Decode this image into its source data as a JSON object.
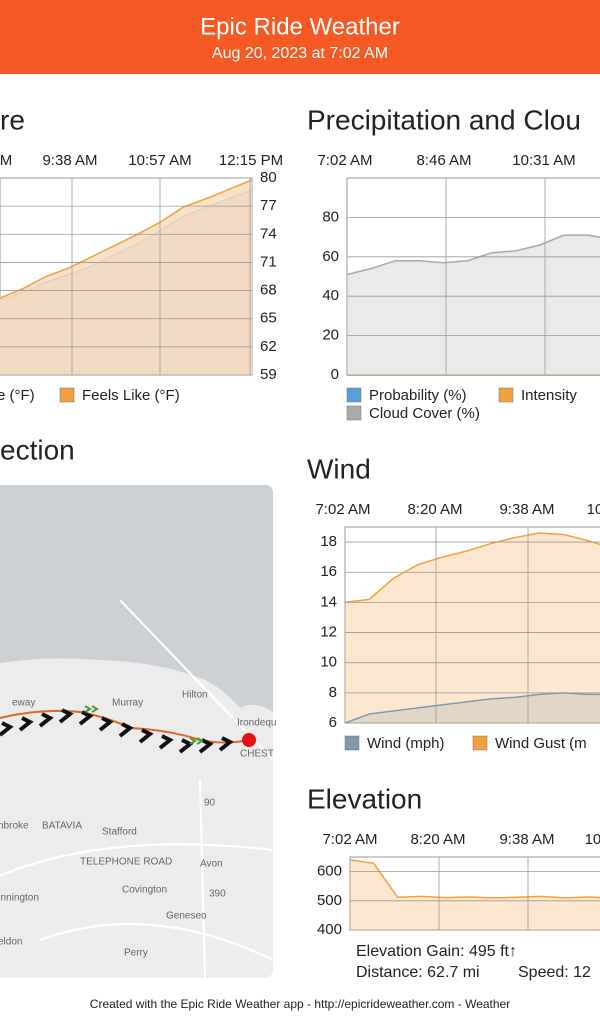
{
  "header": {
    "title": "Epic Ride Weather",
    "subtitle": "Aug 20, 2023 at 7:02 AM"
  },
  "charts": [
    {
      "type": "area",
      "title": "re",
      "x_labels": [
        "M",
        "9:38 AM",
        "10:57 AM",
        "12:15 PM"
      ],
      "ylim": [
        59,
        80
      ],
      "yticks": [
        59,
        62,
        65,
        68,
        71,
        74,
        77,
        80
      ],
      "y_axis_side": "right",
      "series": [
        {
          "name": "re (°F)",
          "color": "#8b9aa4",
          "fill": "#d9d0c3",
          "values": [
            67.0,
            67.8,
            68.9,
            69.7,
            70.6,
            71.8,
            73.0,
            74.4,
            75.9,
            76.9,
            77.8,
            78.7
          ]
        },
        {
          "name": "Feels Like (°F)",
          "color": "#f2a040",
          "fill": "#f6dcc0",
          "values": [
            67.2,
            68.2,
            69.5,
            70.4,
            71.6,
            72.8,
            74.0,
            75.3,
            76.9,
            77.8,
            78.8,
            79.8
          ]
        }
      ]
    },
    {
      "type": "area",
      "title": "Precipitation and Clou",
      "x_labels": [
        "7:02 AM",
        "8:46 AM",
        "10:31 AM"
      ],
      "ylim": [
        0,
        100
      ],
      "yticks": [
        0,
        20,
        40,
        60,
        80
      ],
      "y_axis_side": "left",
      "series": [
        {
          "name": "Probability (%)",
          "color": "#5a9fd4",
          "fill": "#cfe3f3",
          "values": [
            0,
            0,
            0,
            0,
            0,
            0,
            0,
            0,
            0,
            0,
            0,
            0
          ]
        },
        {
          "name": "Intensity",
          "color": "#f2a040",
          "fill": "#fde3c6",
          "values": [
            0,
            0,
            0,
            0,
            0,
            0,
            0,
            0,
            0,
            0,
            0,
            0
          ]
        },
        {
          "name": "Cloud Cover (%)",
          "color": "#aaaaaa",
          "fill": "#e6e6e6",
          "values": [
            51,
            54,
            58,
            58,
            57,
            58,
            62,
            63,
            66,
            71,
            71,
            69
          ]
        }
      ]
    },
    {
      "type": "area",
      "title": "Wind",
      "x_labels": [
        "7:02 AM",
        "8:20 AM",
        "9:38 AM",
        "10"
      ],
      "ylim": [
        6,
        19
      ],
      "yticks": [
        6,
        8,
        10,
        12,
        14,
        16,
        18
      ],
      "y_axis_side": "left",
      "series": [
        {
          "name": "Wind Gust (m",
          "color": "#f2a040",
          "fill": "#fde3c6",
          "values": [
            14.0,
            14.2,
            15.6,
            16.5,
            17.0,
            17.4,
            17.9,
            18.3,
            18.6,
            18.5,
            18.1,
            17.6
          ]
        },
        {
          "name": "Wind (mph)",
          "color": "#7f99ad",
          "fill": "#ddd3c5",
          "values": [
            6.0,
            6.6,
            6.8,
            7.0,
            7.2,
            7.4,
            7.6,
            7.7,
            7.9,
            8.0,
            7.9,
            7.9
          ]
        }
      ]
    },
    {
      "type": "area",
      "title": "Elevation",
      "x_labels": [
        "7:02 AM",
        "8:20 AM",
        "9:38 AM",
        "10:"
      ],
      "ylim": [
        400,
        650
      ],
      "yticks": [
        400,
        500,
        600
      ],
      "y_axis_side": "left",
      "color": "#f2a040",
      "fill": "#fde3c6",
      "values": [
        640,
        628,
        512,
        515,
        511,
        513,
        510,
        512,
        515,
        510,
        513,
        510
      ]
    }
  ],
  "map": {
    "title": "ection",
    "labels": [
      "eway",
      "Murray",
      "Hilton",
      "Irondequ",
      "CHEST",
      "90",
      "nbroke",
      "BATAVIA",
      "Stafford",
      "TELEPHONE ROAD",
      "Avon",
      "Covington",
      "390",
      "ennington",
      "Geneseo",
      "eldon",
      "Perry"
    ]
  },
  "stats": [
    "Elevation Gain: 495 ft↑",
    "Distance: 62.7 mi",
    "Speed: 12"
  ],
  "footer": "Created with the Epic Ride Weather app - http://epicrideweather.com - Weather"
}
